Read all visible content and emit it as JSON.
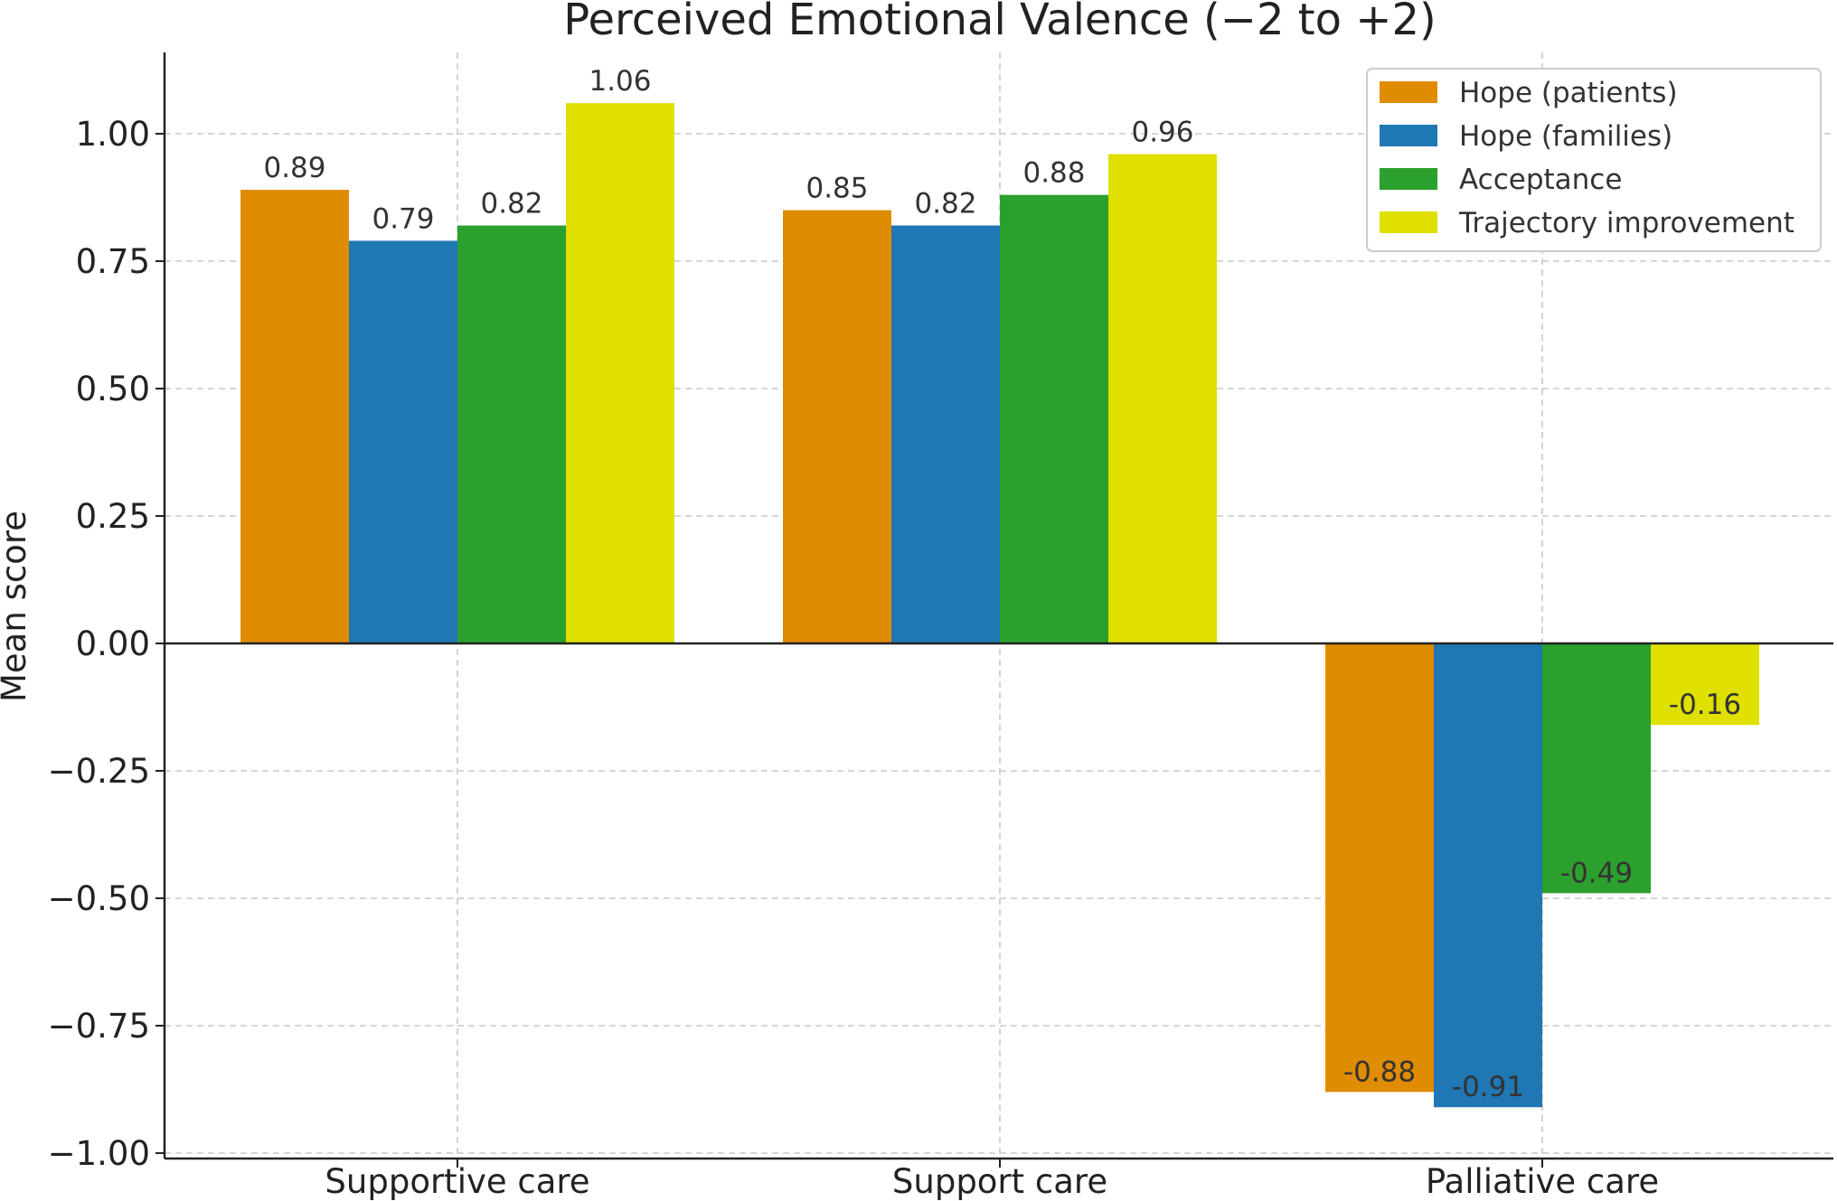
{
  "chart_data": {
    "type": "bar",
    "title": "Perceived Emotional Valence (−2 to +2)",
    "xlabel": "",
    "ylabel": "Mean score",
    "categories": [
      "Supportive care",
      "Support care",
      "Palliative care"
    ],
    "series": [
      {
        "name": "Hope (patients)",
        "color": "#e08c00",
        "values": [
          0.89,
          0.85,
          -0.88
        ]
      },
      {
        "name": "Hope (families)",
        "color": "#1f77b4",
        "values": [
          0.79,
          0.82,
          -0.91
        ]
      },
      {
        "name": "Acceptance",
        "color": "#2ca02c",
        "values": [
          0.82,
          0.88,
          -0.49
        ]
      },
      {
        "name": "Trajectory improvement",
        "color": "#dfe000",
        "values": [
          1.06,
          0.96,
          -0.16
        ]
      }
    ],
    "data_labels": [
      [
        "0.89",
        "0.85",
        "-0.88"
      ],
      [
        "0.79",
        "0.82",
        "-0.91"
      ],
      [
        "0.82",
        "0.88",
        "-0.49"
      ],
      [
        "1.06",
        "0.96",
        "-0.16"
      ]
    ],
    "ylim": [
      -1.0,
      1.15
    ],
    "yticks": [
      1.0,
      0.75,
      0.5,
      0.25,
      0.0,
      -0.25,
      -0.5,
      -0.75,
      -1.0
    ],
    "ytick_labels": [
      "1.00",
      "0.75",
      "0.50",
      "0.25",
      "0.00",
      "−0.25",
      "−0.50",
      "−0.75",
      "−1.00"
    ],
    "grid": true,
    "legend_position": "top-right",
    "zero_line": true
  }
}
